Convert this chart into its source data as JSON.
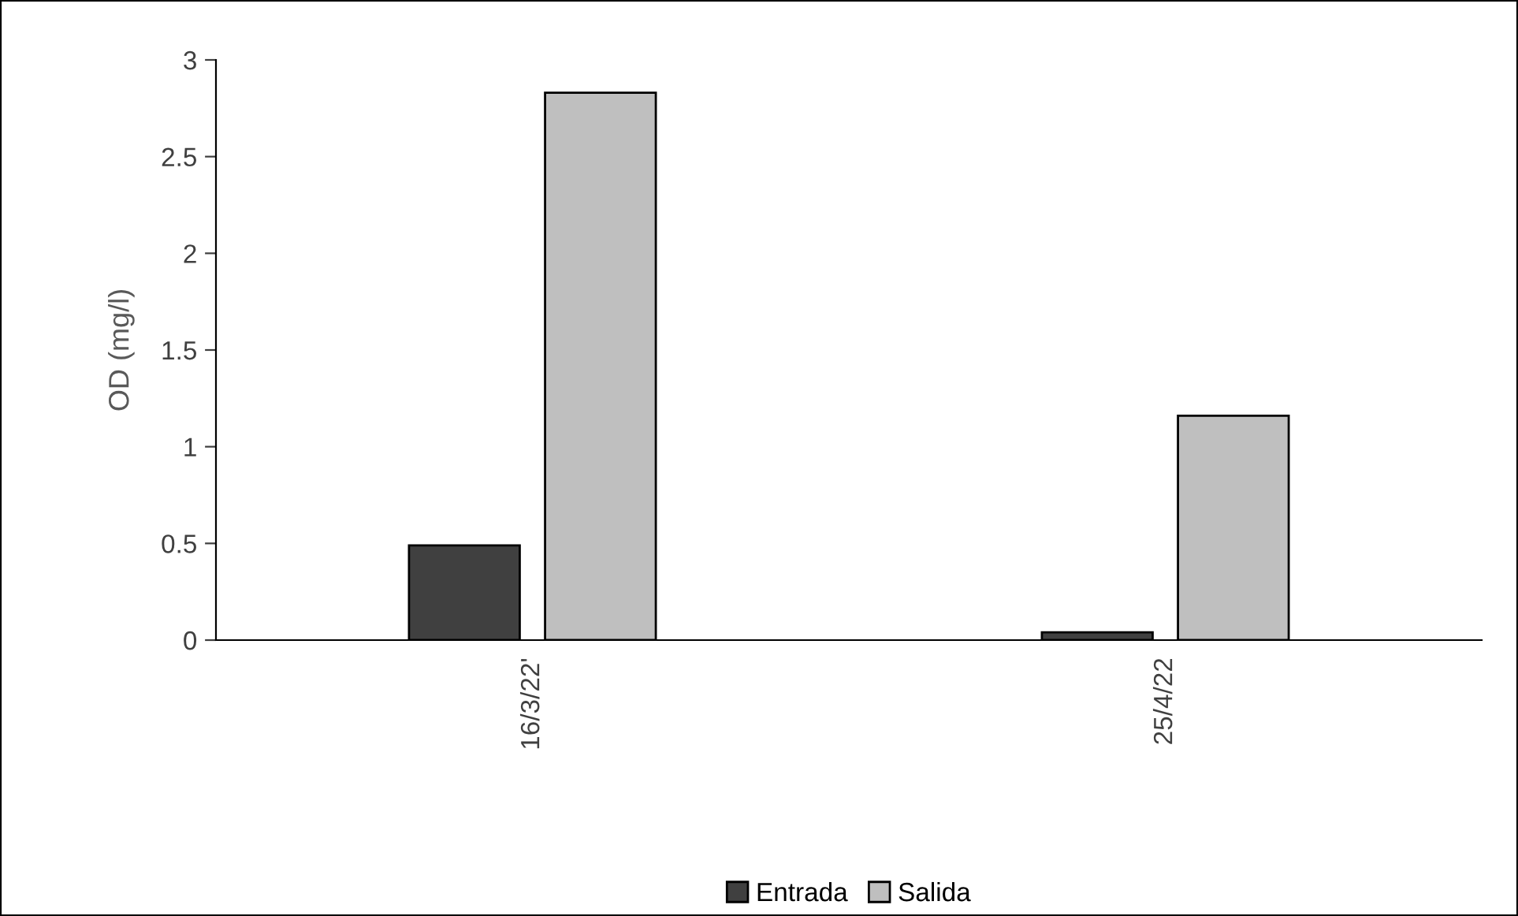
{
  "chart_data": {
    "type": "bar",
    "ylabel": "OD (mg/l)",
    "categories": [
      "16/3/22'",
      "25/4/22"
    ],
    "series": [
      {
        "name": "Entrada",
        "color": "#404040",
        "values": [
          0.49,
          0.04
        ]
      },
      {
        "name": "Salida",
        "color": "#bfbfbf",
        "values": [
          2.83,
          1.16
        ]
      }
    ],
    "ylim": [
      0,
      3
    ],
    "yticks": [
      0,
      0.5,
      1,
      1.5,
      2,
      2.5,
      3
    ],
    "grid": false,
    "legend": "bottom"
  }
}
